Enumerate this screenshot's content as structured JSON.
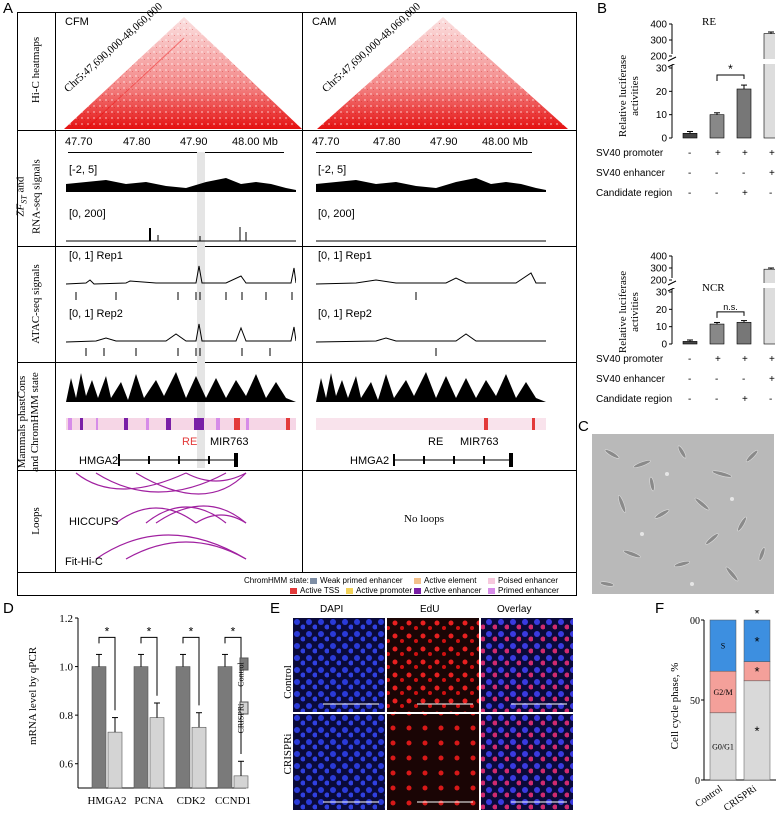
{
  "panels": {
    "A": "A",
    "B": "B",
    "C": "C",
    "D": "D",
    "E": "E",
    "F": "F"
  },
  "panelA": {
    "row_labels": {
      "hic": "Hi-C heatmaps",
      "signals_zf": "ZF",
      "signals_sub": "ST",
      "signals_tail": "and",
      "signals_rna": "RNA-seq signals",
      "atac": "ATAC-seq signals",
      "phast1": "Mammals phastCons",
      "phast2": "and ChromHMM state",
      "loops": "Loops"
    },
    "left_title": "CFM",
    "right_title": "CAM",
    "region": "Chr5:47,690,000-48,060,000",
    "axis_ticks": [
      "47.70",
      "47.80",
      "47.90",
      "48.00 Mb"
    ],
    "zf_range": "[-2, 5]",
    "rna_range": "[0, 200]",
    "atac_range": "[0, 1]",
    "rep1": "Rep1",
    "rep2": "Rep2",
    "re": "RE",
    "mir": "MIR763",
    "gene": "HMGA2",
    "hiccups": "HICCUPS",
    "fithic": "Fit-Hi-C",
    "no_loops": "No loops",
    "legend_title": "ChromHMM state:",
    "legend": [
      {
        "label": "Weak primed enhancer",
        "color": "#7f8fa6"
      },
      {
        "label": "Active element",
        "color": "#f3c08a"
      },
      {
        "label": "Poised enhancer",
        "color": "#f6c9dd"
      },
      {
        "label": "Active TSS",
        "color": "#e33a3a"
      },
      {
        "label": "Active promoter",
        "color": "#f2d257"
      },
      {
        "label": "Active enhancer",
        "color": "#7a1fa6"
      },
      {
        "label": "Primed enhancer",
        "color": "#d68ce8"
      }
    ]
  },
  "panelB": {
    "ylabel1": "Relative luciferase",
    "ylabel2": "activities",
    "rows": [
      "SV40 promoter",
      "SV40 enhancer",
      "Candidate region"
    ],
    "signs": [
      [
        "-",
        "+",
        "+",
        "+"
      ],
      [
        "-",
        "-",
        "-",
        "+"
      ],
      [
        "-",
        "-",
        "+",
        "-"
      ]
    ],
    "sig": "*",
    "ns": "n.s.",
    "charts": [
      {
        "title": "RE",
        "lower_ticks": [
          "0",
          "10",
          "20",
          "30"
        ],
        "upper_ticks": [
          "200",
          "300",
          "400"
        ]
      },
      {
        "title": "NCR",
        "lower_ticks": [
          "0",
          "10",
          "20",
          "30"
        ],
        "upper_ticks": [
          "200",
          "300",
          "400"
        ]
      }
    ]
  },
  "panelD": {
    "ylabel": "mRNA level by qPCR",
    "y_ticks": [
      "0.6",
      "0.8",
      "1.0",
      "1.2"
    ],
    "legend": [
      "Control",
      "CRISPRi"
    ],
    "sig": "*"
  },
  "panelE": {
    "cols": [
      "DAPI",
      "EdU",
      "Overlay"
    ],
    "rows": [
      "Control",
      "CRISPRi"
    ]
  },
  "panelF": {
    "ylabel": "Cell cycle phase, %",
    "y_ticks": [
      "0",
      "50",
      "100"
    ],
    "categories": [
      "Control",
      "CRISPRi"
    ],
    "phases": [
      "S",
      "G2/M",
      "G0/G1"
    ],
    "sig": "*"
  },
  "chart_data": [
    {
      "type": "bar",
      "title": "RE",
      "ylabel": "Relative luciferase activities",
      "categories": [
        "1",
        "2",
        "3",
        "4"
      ],
      "values": [
        2,
        10,
        21,
        340
      ],
      "ylim": [
        0,
        400
      ]
    },
    {
      "type": "bar",
      "title": "NCR",
      "ylabel": "Relative luciferase activities",
      "categories": [
        "1",
        "2",
        "3",
        "4"
      ],
      "values": [
        1.5,
        11.5,
        12.5,
        290
      ],
      "ylim": [
        0,
        400
      ]
    },
    {
      "type": "bar",
      "title": "",
      "ylabel": "mRNA level by qPCR",
      "categories": [
        "HMGA2",
        "PCNA",
        "CDK2",
        "CCND1"
      ],
      "series": [
        {
          "name": "Control",
          "values": [
            1.0,
            1.0,
            1.0,
            1.0
          ]
        },
        {
          "name": "CRISPRi",
          "values": [
            0.73,
            0.79,
            0.75,
            0.55
          ]
        }
      ],
      "ylim": [
        0.5,
        1.2
      ]
    },
    {
      "type": "bar",
      "title": "",
      "ylabel": "Cell cycle phase, %",
      "categories": [
        "Control",
        "CRISPRi"
      ],
      "series": [
        {
          "name": "G0/G1",
          "values": [
            42,
            62
          ]
        },
        {
          "name": "G2/M",
          "values": [
            26,
            12
          ]
        },
        {
          "name": "S",
          "values": [
            32,
            26
          ]
        }
      ],
      "ylim": [
        0,
        100
      ]
    }
  ]
}
